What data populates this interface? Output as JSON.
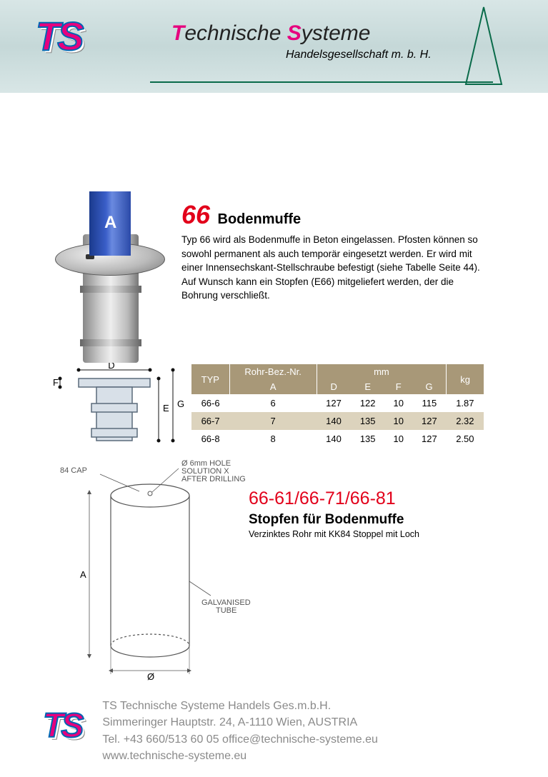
{
  "brand": {
    "logo": "TS",
    "title_1": "T",
    "title_1r": "echnische ",
    "title_2": "S",
    "title_2r": "ysteme",
    "subtitle": "Handelsgesellschaft m. b. H."
  },
  "product": {
    "type_num": "66",
    "title": "Bodenmuffe",
    "desc": "Typ 66 wird als Bodenmuffe in Beton eingelassen. Pfosten können so sowohl permanent als auch temporär eingesetzt werden. Er wird mit einer Innensechskant-Stellschraube befestigt (siehe Tabelle Seite 44). Auf Wunsch kann ein Stopfen (E66) mitgeliefert werden, der die Bohrung verschließt.",
    "pipe_label": "A"
  },
  "diagram1": {
    "D": "D",
    "E": "E",
    "F": "F",
    "G": "G"
  },
  "table": {
    "headers": {
      "typ": "TYP",
      "rohr": "Rohr-Bez.-Nr.",
      "A": "A",
      "mm": "mm",
      "D": "D",
      "E": "E",
      "F": "F",
      "G": "G",
      "kg": "kg"
    },
    "rows": [
      {
        "typ": "66-6",
        "A": "6",
        "D": "127",
        "E": "122",
        "F": "10",
        "G": "115",
        "kg": "1.87",
        "hl": false
      },
      {
        "typ": "66-7",
        "A": "7",
        "D": "140",
        "E": "135",
        "F": "10",
        "G": "127",
        "kg": "2.32",
        "hl": true
      },
      {
        "typ": "66-8",
        "A": "8",
        "D": "140",
        "E": "135",
        "F": "10",
        "G": "127",
        "kg": "2.50",
        "hl": false
      }
    ]
  },
  "diagram2": {
    "cap": "84 CAP",
    "hole": "Ø 6mm HOLE\nSOLUTION X\nAFTER DRILLING",
    "tube": "GALVANISED\nTUBE",
    "A": "A",
    "phi": "Ø"
  },
  "stopfen": {
    "num": "66-61/66-71/66-81",
    "title": "Stopfen für Bodenmuffe",
    "sub": "Verzinktes Rohr mit KK84 Stoppel mit Loch"
  },
  "footer": {
    "l1": "TS Technische Systeme Handels Ges.m.b.H.",
    "l2": "Simmeringer Hauptstr. 24, A-1110  Wien, AUSTRIA",
    "l3": "Tel. +43 660/513 60 05 office@technische-systeme.eu",
    "l4": "www.technische-systeme.eu"
  },
  "colors": {
    "brand_pink": "#e6007e",
    "brand_blue": "#0066b3",
    "accent_red": "#e2001a",
    "table_header": "#a89878",
    "row_highlight": "#dcd3bd",
    "footer_grey": "#8a8a8a",
    "header_line": "#0a6b4a"
  }
}
